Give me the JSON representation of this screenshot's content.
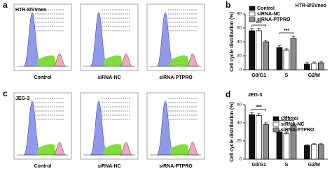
{
  "panels": {
    "a": {
      "letter": "a",
      "cell_line": "HTR-8/SVneo",
      "labels": [
        "Control",
        "siRNA-NC",
        "siRNA-PTPRO"
      ]
    },
    "c": {
      "letter": "c",
      "cell_line": "JEG-3",
      "labels": [
        "Control",
        "siRNA-NC",
        "siRNA-PTPRO"
      ]
    }
  },
  "chart_data": [
    {
      "type": "bar",
      "letter": "b",
      "title": "HTR-8/SVneo",
      "y_label": "Cell cycle distribution (%)",
      "categories": [
        "G0/G1",
        "S",
        "G2/M"
      ],
      "series": [
        {
          "name": "Control",
          "color": "#111111",
          "values": [
            56,
            32,
            8
          ],
          "errors": [
            3,
            3,
            2
          ]
        },
        {
          "name": "siRNA-NC",
          "color": "#ffffff",
          "values": [
            56,
            28,
            9
          ],
          "errors": [
            3,
            2,
            2
          ]
        },
        {
          "name": "siRNA-PTPRO",
          "color": "#8c8c8c",
          "values": [
            40,
            45,
            10
          ],
          "errors": [
            2,
            3,
            2
          ]
        }
      ],
      "annotations": [
        "***",
        "***"
      ],
      "ylim": [
        0,
        80
      ],
      "yticks": [
        0,
        20,
        40,
        60,
        80
      ],
      "legend": "top-left"
    },
    {
      "type": "bar",
      "letter": "d",
      "title": "JEG-3",
      "y_label": "Cell cycle distribution (%)",
      "categories": [
        "G0/G1",
        "S",
        "G2/M"
      ],
      "series": [
        {
          "name": "Control",
          "color": "#111111",
          "values": [
            49,
            30,
            15
          ],
          "errors": [
            2,
            2,
            1
          ]
        },
        {
          "name": "siRNA-NC",
          "color": "#ffffff",
          "values": [
            48,
            28,
            16
          ],
          "errors": [
            2,
            2,
            1
          ]
        },
        {
          "name": "siRNA-PTPRO",
          "color": "#8c8c8c",
          "values": [
            38,
            37,
            16
          ],
          "errors": [
            2,
            2,
            1
          ]
        }
      ],
      "annotations": [
        "***",
        "***"
      ],
      "ylim": [
        0,
        60
      ],
      "yticks": [
        0,
        20,
        40,
        60
      ],
      "legend": "top-center"
    }
  ]
}
